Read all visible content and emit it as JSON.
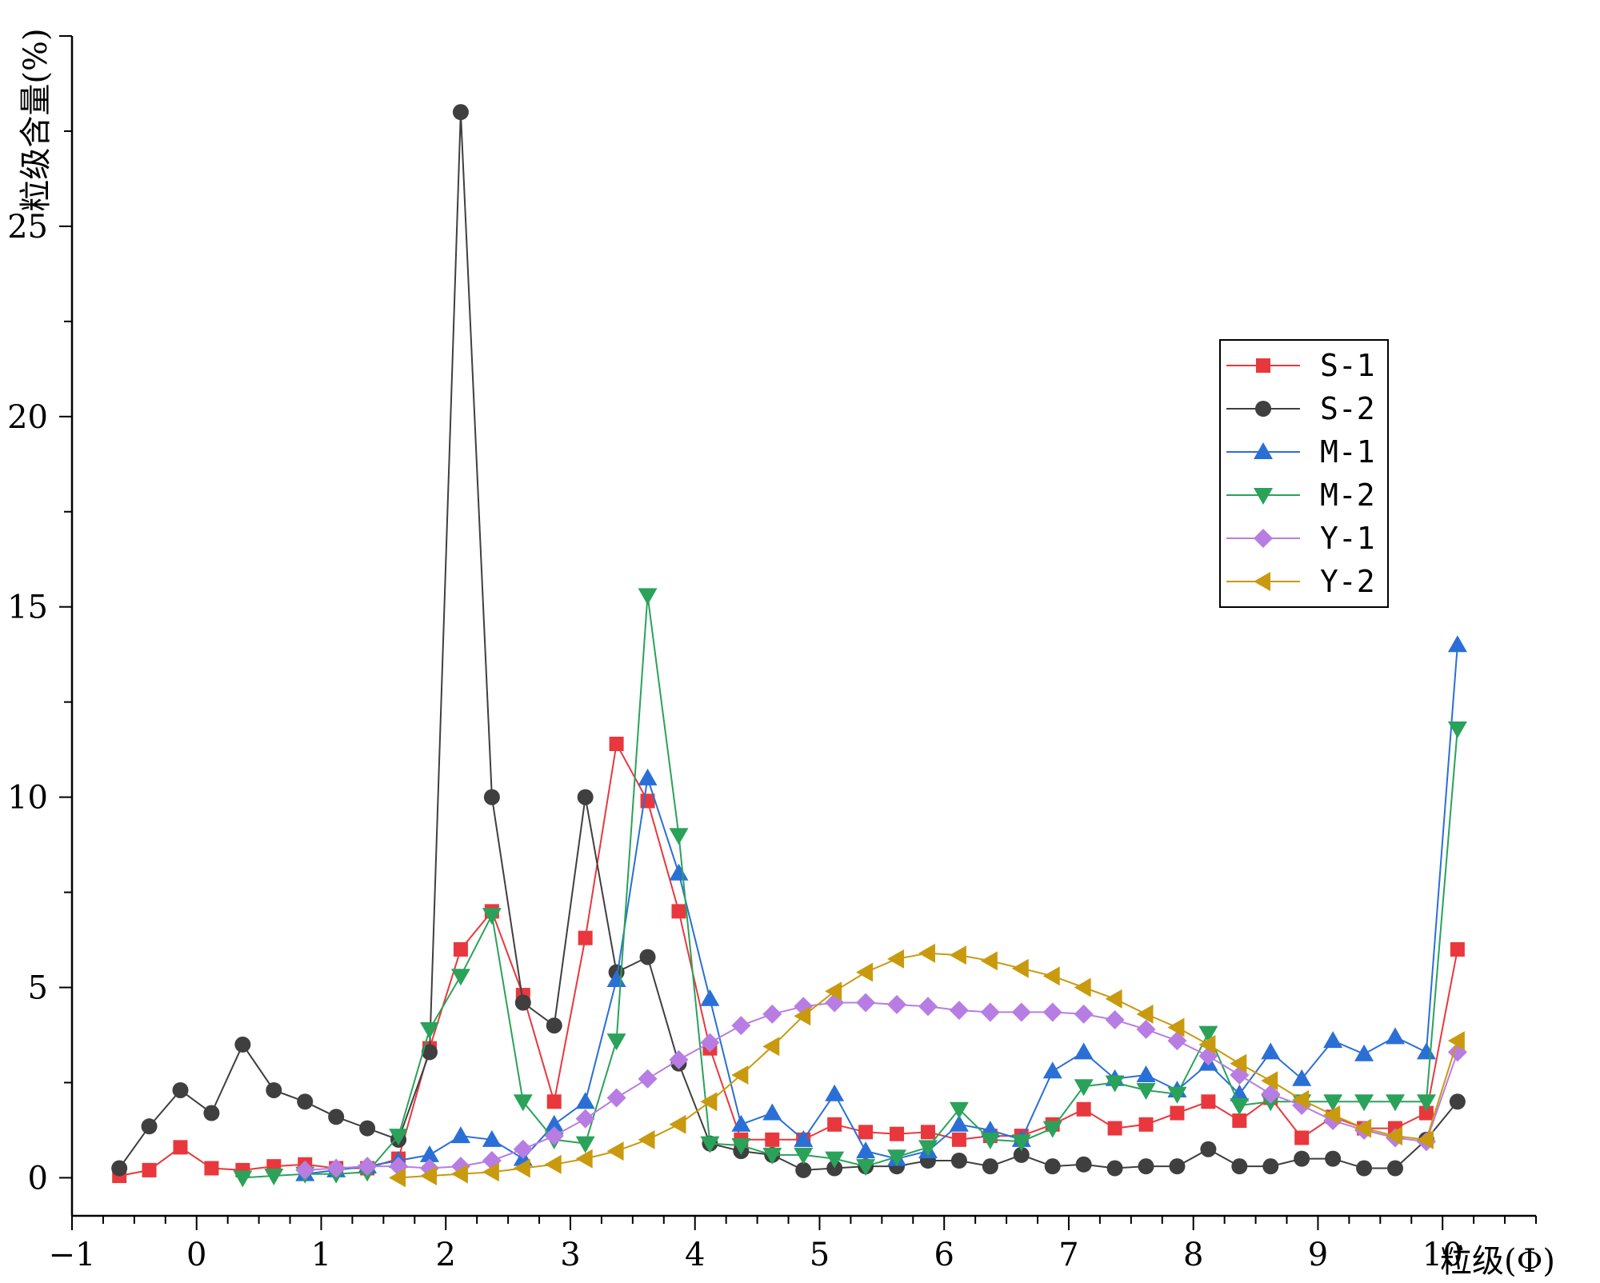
{
  "chart_data": {
    "type": "line",
    "xlabel": "粒级(Φ)",
    "ylabel": "粒级含量(%)",
    "xlim": [
      -1,
      10.75
    ],
    "ylim": [
      -1,
      30
    ],
    "x_ticks": [
      "-1",
      "0",
      "1",
      "2",
      "3",
      "4",
      "5",
      "6",
      "7",
      "8",
      "9",
      "10"
    ],
    "y_ticks": [
      "0",
      "5",
      "10",
      "15",
      "20",
      "25"
    ],
    "legend_position": "right",
    "series": [
      {
        "name": "S-1",
        "color": "#e8383d",
        "marker": "square",
        "x": [
          -0.62,
          -0.38,
          -0.13,
          0.12,
          0.37,
          0.62,
          0.87,
          1.12,
          1.37,
          1.62,
          1.87,
          2.12,
          2.37,
          2.62,
          2.87,
          3.12,
          3.37,
          3.62,
          3.87,
          4.12,
          4.37,
          4.62,
          4.87,
          5.12,
          5.37,
          5.62,
          5.87,
          6.12,
          6.37,
          6.62,
          6.87,
          7.12,
          7.37,
          7.62,
          7.87,
          8.12,
          8.37,
          8.62,
          8.87,
          9.12,
          9.37,
          9.62,
          9.87,
          10.12
        ],
        "y": [
          0.05,
          0.2,
          0.8,
          0.25,
          0.2,
          0.3,
          0.35,
          0.25,
          0.25,
          0.5,
          3.4,
          6.0,
          7.0,
          4.8,
          2.0,
          6.3,
          11.4,
          9.9,
          7.0,
          3.4,
          1.0,
          1.0,
          1.0,
          1.4,
          1.2,
          1.15,
          1.2,
          1.0,
          1.1,
          1.1,
          1.4,
          1.8,
          1.3,
          1.4,
          1.7,
          2.0,
          1.5,
          2.1,
          1.05,
          1.6,
          1.3,
          1.3,
          1.7,
          6.0
        ]
      },
      {
        "name": "S-2",
        "color": "#3f3f3f",
        "marker": "circle",
        "x": [
          -0.62,
          -0.38,
          -0.13,
          0.12,
          0.37,
          0.62,
          0.87,
          1.12,
          1.37,
          1.62,
          1.87,
          2.12,
          2.37,
          2.62,
          2.87,
          3.12,
          3.37,
          3.62,
          3.87,
          4.12,
          4.37,
          4.62,
          4.87,
          5.12,
          5.37,
          5.62,
          5.87,
          6.12,
          6.37,
          6.62,
          6.87,
          7.12,
          7.37,
          7.62,
          7.87,
          8.12,
          8.37,
          8.62,
          8.87,
          9.12,
          9.37,
          9.62,
          9.87,
          10.12
        ],
        "y": [
          0.25,
          1.35,
          2.3,
          1.7,
          3.5,
          2.3,
          2.0,
          1.6,
          1.3,
          1.0,
          3.3,
          28.0,
          10.0,
          4.6,
          4.0,
          10.0,
          5.4,
          5.8,
          3.0,
          0.9,
          0.7,
          0.6,
          0.2,
          0.25,
          0.3,
          0.3,
          0.45,
          0.45,
          0.3,
          0.6,
          0.3,
          0.35,
          0.25,
          0.3,
          0.3,
          0.75,
          0.3,
          0.3,
          0.5,
          0.5,
          0.25,
          0.25,
          1.0,
          2.0
        ]
      },
      {
        "name": "M-1",
        "color": "#2a6fd6",
        "marker": "triangle-up",
        "x": [
          0.87,
          1.12,
          1.37,
          1.62,
          1.87,
          2.12,
          2.37,
          2.62,
          2.87,
          3.12,
          3.37,
          3.62,
          3.87,
          4.12,
          4.37,
          4.62,
          4.87,
          5.12,
          5.37,
          5.62,
          5.87,
          6.12,
          6.37,
          6.62,
          6.87,
          7.12,
          7.37,
          7.62,
          7.87,
          8.12,
          8.37,
          8.62,
          8.87,
          9.12,
          9.37,
          9.62,
          9.87,
          10.12
        ],
        "y": [
          0.1,
          0.2,
          0.3,
          0.45,
          0.6,
          1.1,
          1.0,
          0.5,
          1.4,
          2.0,
          5.2,
          10.5,
          8.0,
          4.7,
          1.4,
          1.7,
          1.0,
          2.2,
          0.7,
          0.5,
          0.7,
          1.4,
          1.25,
          1.0,
          2.8,
          3.3,
          2.6,
          2.7,
          2.3,
          3.0,
          2.2,
          3.3,
          2.6,
          3.6,
          3.25,
          3.7,
          3.3,
          14.0
        ]
      },
      {
        "name": "M-2",
        "color": "#2aa25a",
        "marker": "triangle-down",
        "x": [
          0.37,
          0.62,
          0.87,
          1.12,
          1.37,
          1.62,
          1.87,
          2.12,
          2.37,
          2.62,
          2.87,
          3.12,
          3.37,
          3.62,
          3.87,
          4.12,
          4.37,
          4.62,
          4.87,
          5.12,
          5.37,
          5.62,
          5.87,
          6.12,
          6.37,
          6.62,
          6.87,
          7.12,
          7.37,
          7.62,
          7.87,
          8.12,
          8.37,
          8.62,
          8.87,
          9.12,
          9.37,
          9.62,
          9.87,
          10.12
        ],
        "y": [
          0.0,
          0.05,
          0.1,
          0.1,
          0.15,
          1.1,
          3.9,
          5.3,
          6.9,
          2.0,
          1.0,
          0.9,
          3.6,
          15.3,
          9.0,
          0.9,
          0.85,
          0.6,
          0.6,
          0.5,
          0.3,
          0.55,
          0.8,
          1.8,
          1.0,
          0.95,
          1.3,
          2.4,
          2.5,
          2.3,
          2.2,
          3.8,
          1.9,
          2.0,
          2.0,
          2.0,
          2.0,
          2.0,
          2.0,
          11.8
        ]
      },
      {
        "name": "Y-1",
        "color": "#b77de3",
        "marker": "diamond",
        "x": [
          0.87,
          1.12,
          1.37,
          1.62,
          1.87,
          2.12,
          2.37,
          2.62,
          2.87,
          3.12,
          3.37,
          3.62,
          3.87,
          4.12,
          4.37,
          4.62,
          4.87,
          5.12,
          5.37,
          5.62,
          5.87,
          6.12,
          6.37,
          6.62,
          6.87,
          7.12,
          7.37,
          7.62,
          7.87,
          8.12,
          8.37,
          8.62,
          8.87,
          9.12,
          9.37,
          9.62,
          9.87,
          10.12
        ],
        "y": [
          0.2,
          0.25,
          0.3,
          0.3,
          0.25,
          0.3,
          0.45,
          0.75,
          1.1,
          1.55,
          2.1,
          2.6,
          3.1,
          3.55,
          4.0,
          4.3,
          4.5,
          4.6,
          4.6,
          4.55,
          4.5,
          4.4,
          4.35,
          4.35,
          4.35,
          4.3,
          4.15,
          3.9,
          3.6,
          3.2,
          2.7,
          2.2,
          1.9,
          1.5,
          1.25,
          1.05,
          0.95,
          3.3
        ]
      },
      {
        "name": "Y-2",
        "color": "#c99a0e",
        "marker": "triangle-left",
        "x": [
          1.62,
          1.87,
          2.12,
          2.37,
          2.62,
          2.87,
          3.12,
          3.37,
          3.62,
          3.87,
          4.12,
          4.37,
          4.62,
          4.87,
          5.12,
          5.37,
          5.62,
          5.87,
          6.12,
          6.37,
          6.62,
          6.87,
          7.12,
          7.37,
          7.62,
          7.87,
          8.12,
          8.37,
          8.62,
          8.87,
          9.12,
          9.37,
          9.62,
          9.87,
          10.12
        ],
        "y": [
          0.0,
          0.05,
          0.1,
          0.15,
          0.25,
          0.35,
          0.5,
          0.7,
          1.0,
          1.4,
          2.0,
          2.7,
          3.45,
          4.25,
          4.9,
          5.4,
          5.75,
          5.9,
          5.85,
          5.7,
          5.5,
          5.3,
          5.0,
          4.7,
          4.3,
          3.95,
          3.5,
          3.0,
          2.55,
          2.05,
          1.65,
          1.3,
          1.1,
          1.0,
          3.6
        ]
      }
    ]
  }
}
